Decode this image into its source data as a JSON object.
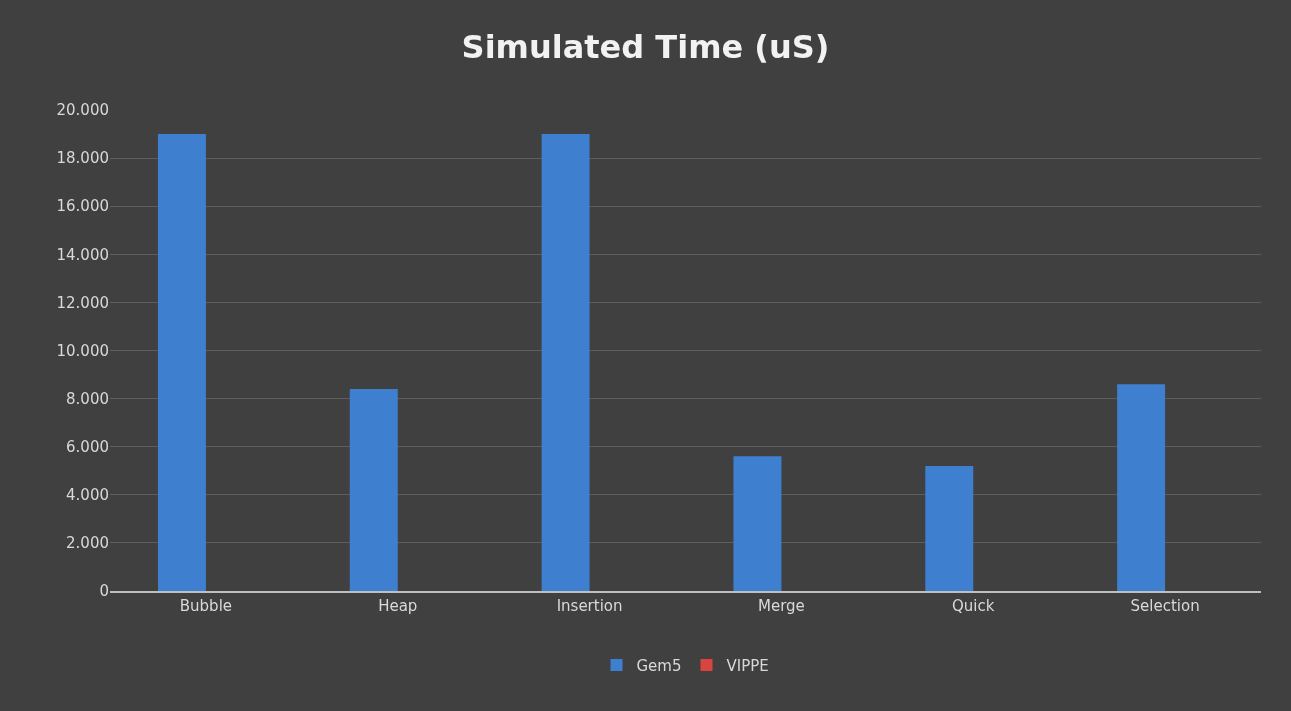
{
  "chart_data": {
    "type": "bar",
    "title": "Simulated Time (uS)",
    "categories": [
      "Bubble",
      "Heap",
      "Insertion",
      "Merge",
      "Quick",
      "Selection"
    ],
    "series": [
      {
        "name": "Gem5",
        "color": "#3f7fd0",
        "values": [
          19000,
          8400,
          19000,
          5600,
          5200,
          8600
        ]
      },
      {
        "name": "VIPPE",
        "color": "#d9443f",
        "values": [
          0,
          0,
          0,
          0,
          0,
          0
        ]
      }
    ],
    "ylim": [
      0,
      20000
    ],
    "yticks": [
      0,
      {
        "value": 2000,
        "label": "2.000"
      },
      {
        "value": 4000,
        "label": "4.000"
      },
      {
        "value": 6000,
        "label": "6.000"
      },
      {
        "value": 8000,
        "label": "8.000"
      },
      {
        "value": 10000,
        "label": "10.000"
      },
      {
        "value": 12000,
        "label": "12.000"
      },
      {
        "value": 14000,
        "label": "14.000"
      },
      {
        "value": 16000,
        "label": "16.000"
      },
      {
        "value": 18000,
        "label": "18.000"
      },
      {
        "value": 20000,
        "label": "20.000"
      }
    ],
    "grid": "y",
    "legend": "bottom"
  }
}
